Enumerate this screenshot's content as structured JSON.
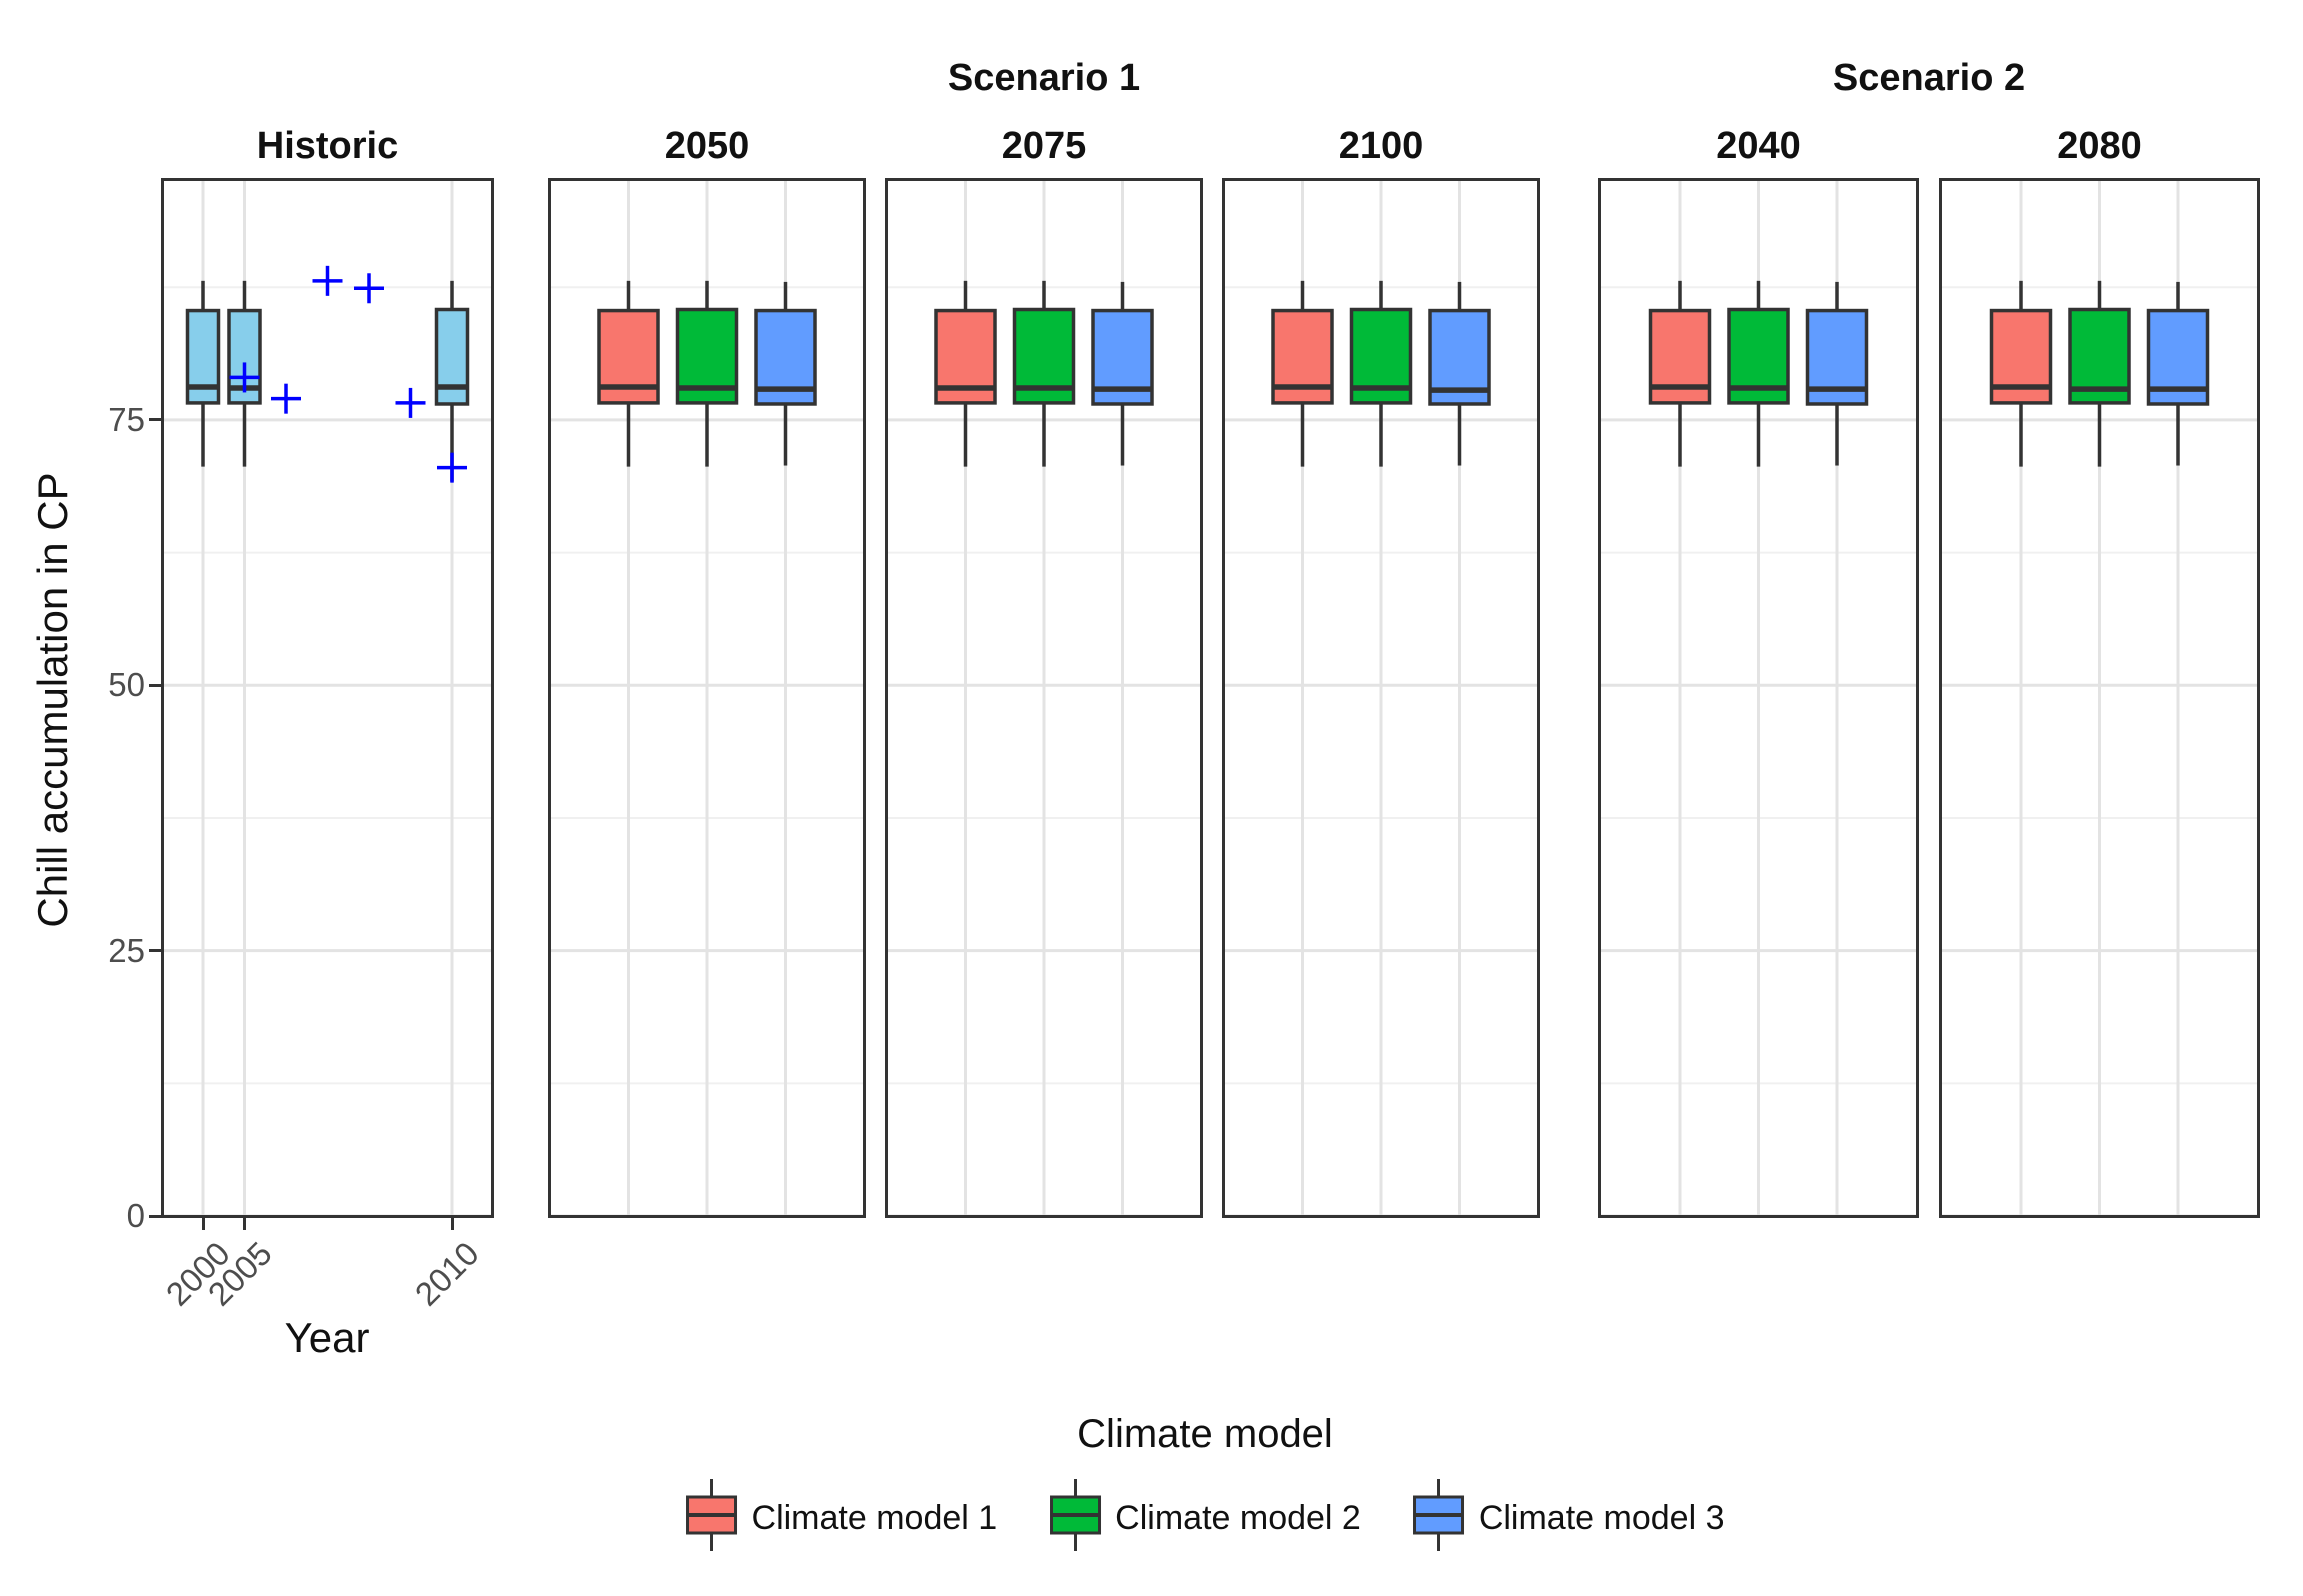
{
  "chart_data": {
    "type": "boxplot",
    "title": "",
    "ylabel": "Chill accumulation in CP",
    "xlabel": "Year",
    "ylim": [
      0,
      97.6
    ],
    "y_breaks": [
      0,
      25,
      50,
      75
    ],
    "y_minor_breaks": [
      12.5,
      37.5,
      62.5,
      87.5
    ],
    "grid": true,
    "point_style": {
      "shape": "plus-cross",
      "color": "#0000FF"
    },
    "legend": {
      "title": "Climate model",
      "position": "bottom",
      "entries": [
        {
          "label": "Climate model 1",
          "fill": "#F8766D"
        },
        {
          "label": "Climate model 2",
          "fill": "#00BA38"
        },
        {
          "label": "Climate model 3",
          "fill": "#619CFF"
        }
      ]
    },
    "facet_groups": [
      {
        "label": "Scenario 1",
        "panels": [
          "2050",
          "2075",
          "2100"
        ]
      },
      {
        "label": "Scenario 2",
        "panels": [
          "2040",
          "2080"
        ]
      }
    ],
    "panels": [
      {
        "label": "Historic",
        "group": "",
        "show_x_labels": true,
        "x_levels": [
          "2000",
          "2005",
          "2006",
          "2007",
          "2008",
          "2009",
          "2010"
        ],
        "x_breaks": [
          "2000",
          "2005",
          "2010"
        ],
        "boxes": [
          {
            "x": "2000",
            "fill": "#87CEEB",
            "low": 70.6,
            "q1": 76.6,
            "median": 78.1,
            "q3": 85.3,
            "high": 88.1
          },
          {
            "x": "2005",
            "fill": "#87CEEB",
            "low": 70.6,
            "q1": 76.6,
            "median": 78.0,
            "q3": 85.3,
            "high": 88.1
          },
          {
            "x": "2010",
            "fill": "#87CEEB",
            "low": 69.2,
            "q1": 76.5,
            "median": 78.1,
            "q3": 85.4,
            "high": 88.1
          }
        ],
        "points": [
          {
            "x": "2005",
            "value": 79.0
          },
          {
            "x": "2006",
            "value": 77.0
          },
          {
            "x": "2007",
            "value": 88.1
          },
          {
            "x": "2008",
            "value": 87.4
          },
          {
            "x": "2009",
            "value": 76.6
          },
          {
            "x": "2010",
            "value": 70.5
          }
        ]
      },
      {
        "label": "2050",
        "group": "Scenario 1",
        "show_x_labels": false,
        "x_levels": [
          "Climate model 1",
          "Climate model 2",
          "Climate model 3"
        ],
        "x_breaks": [
          "Climate model 1",
          "Climate model 2",
          "Climate model 3"
        ],
        "boxes": [
          {
            "x": "Climate model 1",
            "fill": "#F8766D",
            "low": 70.6,
            "q1": 76.6,
            "median": 78.1,
            "q3": 85.3,
            "high": 88.1
          },
          {
            "x": "Climate model 2",
            "fill": "#00BA38",
            "low": 70.6,
            "q1": 76.6,
            "median": 78.0,
            "q3": 85.4,
            "high": 88.1
          },
          {
            "x": "Climate model 3",
            "fill": "#619CFF",
            "low": 70.7,
            "q1": 76.5,
            "median": 77.9,
            "q3": 85.3,
            "high": 88.0
          }
        ],
        "points": []
      },
      {
        "label": "2075",
        "group": "Scenario 1",
        "show_x_labels": false,
        "x_levels": [
          "Climate model 1",
          "Climate model 2",
          "Climate model 3"
        ],
        "x_breaks": [
          "Climate model 1",
          "Climate model 2",
          "Climate model 3"
        ],
        "boxes": [
          {
            "x": "Climate model 1",
            "fill": "#F8766D",
            "low": 70.6,
            "q1": 76.6,
            "median": 78.0,
            "q3": 85.3,
            "high": 88.1
          },
          {
            "x": "Climate model 2",
            "fill": "#00BA38",
            "low": 70.6,
            "q1": 76.6,
            "median": 78.0,
            "q3": 85.4,
            "high": 88.1
          },
          {
            "x": "Climate model 3",
            "fill": "#619CFF",
            "low": 70.7,
            "q1": 76.5,
            "median": 77.9,
            "q3": 85.3,
            "high": 88.0
          }
        ],
        "points": []
      },
      {
        "label": "2100",
        "group": "Scenario 1",
        "show_x_labels": false,
        "x_levels": [
          "Climate model 1",
          "Climate model 2",
          "Climate model 3"
        ],
        "x_breaks": [
          "Climate model 1",
          "Climate model 2",
          "Climate model 3"
        ],
        "boxes": [
          {
            "x": "Climate model 1",
            "fill": "#F8766D",
            "low": 70.6,
            "q1": 76.6,
            "median": 78.1,
            "q3": 85.3,
            "high": 88.1
          },
          {
            "x": "Climate model 2",
            "fill": "#00BA38",
            "low": 70.6,
            "q1": 76.6,
            "median": 78.0,
            "q3": 85.4,
            "high": 88.1
          },
          {
            "x": "Climate model 3",
            "fill": "#619CFF",
            "low": 70.7,
            "q1": 76.5,
            "median": 77.8,
            "q3": 85.3,
            "high": 88.0
          }
        ],
        "points": []
      },
      {
        "label": "2040",
        "group": "Scenario 2",
        "show_x_labels": false,
        "x_levels": [
          "Climate model 1",
          "Climate model 2",
          "Climate model 3"
        ],
        "x_breaks": [
          "Climate model 1",
          "Climate model 2",
          "Climate model 3"
        ],
        "boxes": [
          {
            "x": "Climate model 1",
            "fill": "#F8766D",
            "low": 70.6,
            "q1": 76.6,
            "median": 78.1,
            "q3": 85.3,
            "high": 88.1
          },
          {
            "x": "Climate model 2",
            "fill": "#00BA38",
            "low": 70.6,
            "q1": 76.6,
            "median": 78.0,
            "q3": 85.4,
            "high": 88.1
          },
          {
            "x": "Climate model 3",
            "fill": "#619CFF",
            "low": 70.7,
            "q1": 76.5,
            "median": 77.9,
            "q3": 85.3,
            "high": 88.0
          }
        ],
        "points": []
      },
      {
        "label": "2080",
        "group": "Scenario 2",
        "show_x_labels": false,
        "x_levels": [
          "Climate model 1",
          "Climate model 2",
          "Climate model 3"
        ],
        "x_breaks": [
          "Climate model 1",
          "Climate model 2",
          "Climate model 3"
        ],
        "boxes": [
          {
            "x": "Climate model 1",
            "fill": "#F8766D",
            "low": 70.6,
            "q1": 76.6,
            "median": 78.1,
            "q3": 85.3,
            "high": 88.1
          },
          {
            "x": "Climate model 2",
            "fill": "#00BA38",
            "low": 70.6,
            "q1": 76.6,
            "median": 77.9,
            "q3": 85.4,
            "high": 88.1
          },
          {
            "x": "Climate model 3",
            "fill": "#619CFF",
            "low": 70.7,
            "q1": 76.5,
            "median": 77.9,
            "q3": 85.3,
            "high": 88.0
          }
        ],
        "points": []
      }
    ]
  },
  "theme": {
    "background": "#FFFFFF",
    "box_stroke": "#333333",
    "grid_major": "#E3E3E3",
    "grid_minor": "#F0F0F0",
    "tick_color": "#333333",
    "tick_label_color": "#4D4D4D",
    "text_color": "#111111",
    "point_color": "#0000FF"
  }
}
